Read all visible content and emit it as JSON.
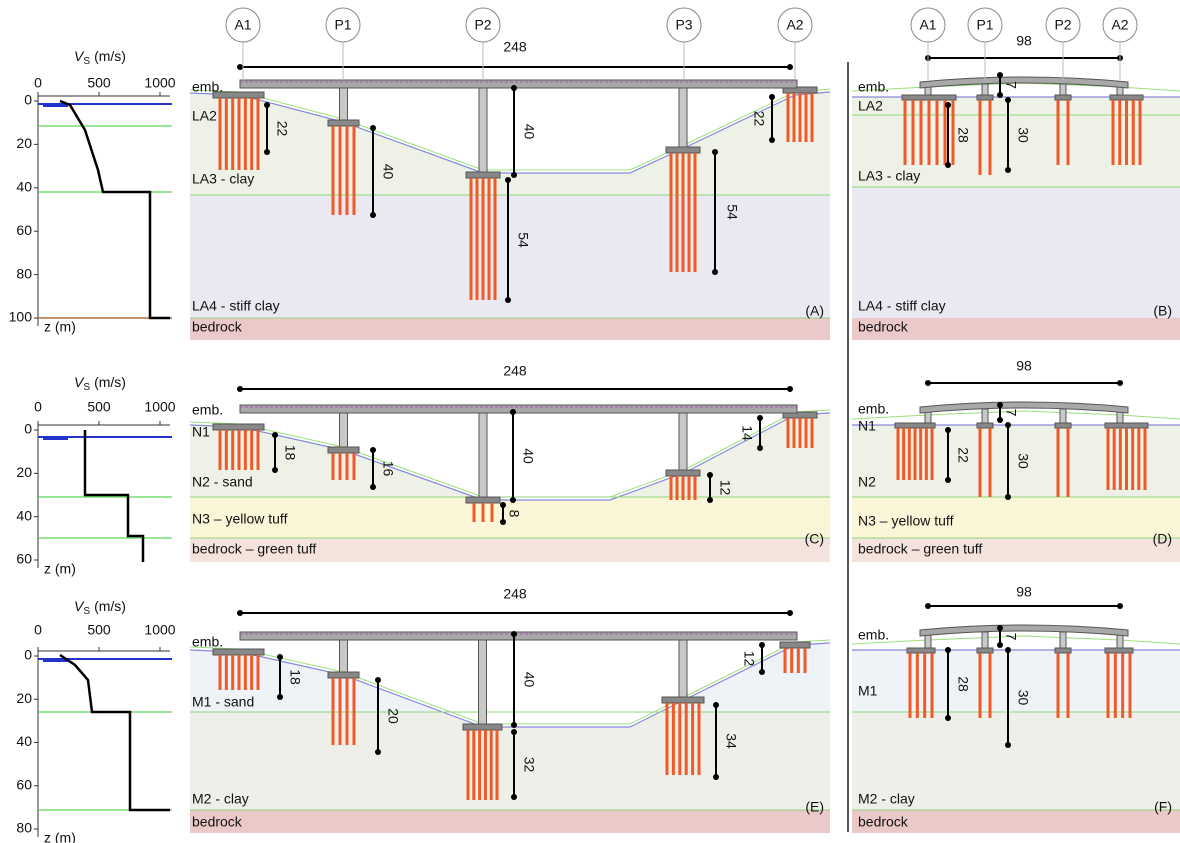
{
  "rows": [
    {
      "profile": {
        "x_label": "V",
        "x_label_sub": "S",
        "x_unit": "(m/s)",
        "xticks": [
          0,
          500,
          1000
        ],
        "yticks": [
          0,
          20,
          40,
          60,
          80,
          100
        ],
        "y_label": "z (m)"
      },
      "longitudinal": {
        "piers": [
          "A1",
          "P1",
          "P2",
          "P3",
          "A2"
        ],
        "span": "248",
        "layers": [
          "emb.",
          "LA2",
          "LA3 - clay",
          "LA4 - stiff clay",
          "bedrock"
        ],
        "dimensions": [
          "22",
          "40",
          "40",
          "54",
          "54",
          "22"
        ],
        "panel": "(A)"
      },
      "transverse": {
        "piers": [
          "A1",
          "P1",
          "P2",
          "A2"
        ],
        "span": "98",
        "layers": [
          "emb.",
          "LA2",
          "LA3 - clay",
          "LA4 - stiff clay",
          "bedrock"
        ],
        "dimensions": [
          "7",
          "28",
          "30"
        ],
        "panel": "(B)"
      }
    },
    {
      "profile": {
        "x_label": "V",
        "x_label_sub": "S",
        "x_unit": "(m/s)",
        "xticks": [
          0,
          500,
          1000
        ],
        "yticks": [
          0,
          20,
          40,
          60
        ],
        "y_label": "z (m)"
      },
      "longitudinal": {
        "span": "248",
        "layers": [
          "emb.",
          "N1",
          "N2 - sand",
          "N3 – yellow tuff",
          "bedrock – green tuff"
        ],
        "dimensions": [
          "18",
          "16",
          "8",
          "40",
          "12",
          "14"
        ],
        "panel": "(C)"
      },
      "transverse": {
        "span": "98",
        "layers": [
          "emb.",
          "N1",
          "N2",
          "N3 – yellow tuff",
          "bedrock – green tuff"
        ],
        "dimensions": [
          "7",
          "22",
          "30"
        ],
        "panel": "(D)"
      }
    },
    {
      "profile": {
        "x_label": "V",
        "x_label_sub": "S",
        "x_unit": "(m/s)",
        "xticks": [
          0,
          500,
          1000
        ],
        "yticks": [
          0,
          20,
          40,
          60,
          80
        ],
        "y_label": "z (m)"
      },
      "longitudinal": {
        "span": "248",
        "layers": [
          "emb.",
          "M1 - sand",
          "M2 - clay",
          "bedrock"
        ],
        "dimensions": [
          "18",
          "20",
          "40",
          "32",
          "34",
          "12"
        ],
        "panel": "(E)"
      },
      "transverse": {
        "span": "98",
        "layers": [
          "emb.",
          "M1",
          "M2 - clay",
          "bedrock"
        ],
        "dimensions": [
          "7",
          "28",
          "30"
        ],
        "panel": "(F)"
      }
    }
  ]
}
